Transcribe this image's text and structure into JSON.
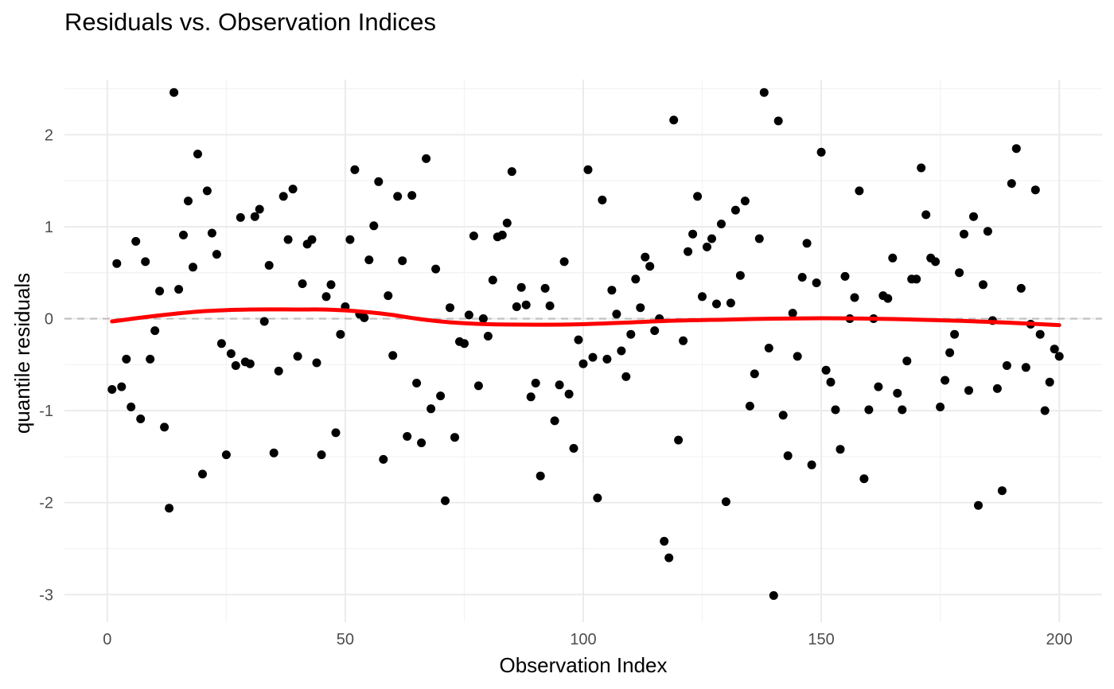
{
  "chart_data": {
    "type": "scatter",
    "title": "Residuals vs. Observation Indices",
    "xlabel": "Observation Index",
    "ylabel": "quantile residuals",
    "xlim": [
      -9,
      209
    ],
    "ylim": [
      -3.3,
      2.6
    ],
    "x_ticks": [
      0,
      50,
      100,
      150,
      200
    ],
    "y_ticks": [
      -3,
      -2,
      -1,
      0,
      1,
      2
    ],
    "x_tick_labels": [
      "0",
      "50",
      "100",
      "150",
      "200"
    ],
    "y_tick_labels": [
      "-3",
      "-2",
      "-1",
      "0",
      "1",
      "2"
    ],
    "grid": true,
    "reference_line": {
      "y": 0,
      "style": "dashed",
      "color": "#bebebe"
    },
    "point_color": "#000000",
    "smooth_color": "#ff0000",
    "series": [
      {
        "type": "scatter",
        "x": [
          1,
          2,
          3,
          4,
          5,
          6,
          7,
          8,
          9,
          10,
          11,
          12,
          13,
          14,
          15,
          16,
          17,
          18,
          19,
          20,
          21,
          22,
          23,
          24,
          25,
          26,
          27,
          28,
          29,
          30,
          31,
          32,
          33,
          34,
          35,
          36,
          37,
          38,
          39,
          40,
          41,
          42,
          43,
          44,
          45,
          46,
          47,
          48,
          49,
          50,
          51,
          52,
          53,
          54,
          55,
          56,
          57,
          58,
          59,
          60,
          61,
          62,
          63,
          64,
          65,
          66,
          67,
          68,
          69,
          70,
          71,
          72,
          73,
          74,
          75,
          76,
          77,
          78,
          79,
          80,
          81,
          82,
          83,
          84,
          85,
          86,
          87,
          88,
          89,
          90,
          91,
          92,
          93,
          94,
          95,
          96,
          97,
          98,
          99,
          100,
          101,
          102,
          103,
          104,
          105,
          106,
          107,
          108,
          109,
          110,
          111,
          112,
          113,
          114,
          115,
          116,
          117,
          118,
          119,
          120,
          121,
          122,
          123,
          124,
          125,
          126,
          127,
          128,
          129,
          130,
          131,
          132,
          133,
          134,
          135,
          136,
          137,
          138,
          139,
          140,
          141,
          142,
          143,
          144,
          145,
          146,
          147,
          148,
          149,
          150,
          151,
          152,
          153,
          154,
          155,
          156,
          157,
          158,
          159,
          160,
          161,
          162,
          163,
          164,
          165,
          166,
          167,
          168,
          169,
          170,
          171,
          172,
          173,
          174,
          175,
          176,
          177,
          178,
          179,
          180,
          181,
          182,
          183,
          184,
          185,
          186,
          187,
          188,
          189,
          190,
          191,
          192,
          193,
          194,
          195,
          196,
          197,
          198,
          199,
          200
        ],
        "y": [
          -0.77,
          0.6,
          -0.74,
          -0.44,
          -0.96,
          0.84,
          -1.09,
          0.62,
          -0.44,
          -0.13,
          0.3,
          -1.18,
          -2.06,
          2.46,
          0.32,
          0.91,
          1.28,
          0.56,
          1.79,
          -1.69,
          1.39,
          0.93,
          0.7,
          -0.27,
          -1.48,
          -0.38,
          -0.51,
          1.1,
          -0.47,
          -0.49,
          1.11,
          1.19,
          -0.03,
          0.58,
          -1.46,
          -0.57,
          1.33,
          0.86,
          1.41,
          -0.41,
          0.38,
          0.81,
          0.86,
          -0.48,
          -1.48,
          0.24,
          0.37,
          -1.24,
          -0.17,
          0.13,
          0.86,
          1.62,
          0.05,
          0.01,
          0.64,
          1.01,
          1.49,
          -1.53,
          0.25,
          -0.4,
          1.33,
          0.63,
          -1.28,
          1.34,
          -0.7,
          -1.35,
          1.74,
          -0.98,
          0.54,
          -0.84,
          -1.98,
          0.12,
          -1.29,
          -0.25,
          -0.27,
          0.04,
          0.9,
          -0.73,
          0.0,
          -0.19,
          0.42,
          0.89,
          0.91,
          1.04,
          1.6,
          0.13,
          0.34,
          0.15,
          -0.85,
          -0.7,
          -1.71,
          0.33,
          0.14,
          -1.11,
          -0.72,
          0.62,
          -0.82,
          -1.41,
          -0.23,
          -0.49,
          1.62,
          -0.42,
          -1.95,
          1.29,
          -0.44,
          0.31,
          0.05,
          -0.35,
          -0.63,
          -0.17,
          0.43,
          0.12,
          0.67,
          0.57,
          -0.13,
          0.0,
          -2.42,
          -2.6,
          2.16,
          -1.32,
          -0.24,
          0.73,
          0.92,
          1.33,
          0.24,
          0.78,
          0.87,
          0.16,
          1.03,
          -1.99,
          0.17,
          1.18,
          0.47,
          1.28,
          -0.95,
          -0.6,
          0.87,
          2.46,
          -0.32,
          -3.01,
          2.15,
          -1.05,
          -1.49,
          0.06,
          -0.41,
          0.45,
          0.82,
          -1.59,
          0.39,
          1.81,
          -0.56,
          -0.69,
          -0.99,
          -1.42,
          0.46,
          0.0,
          0.23,
          1.39,
          -1.74,
          -0.99,
          0.0,
          -0.74,
          0.25,
          0.22,
          0.66,
          -0.81,
          -0.99,
          -0.46,
          0.43,
          0.43,
          1.64,
          1.13,
          0.66,
          0.62,
          -0.96,
          -0.67,
          -0.37,
          -0.17,
          0.5,
          0.92,
          -0.78,
          1.11,
          -2.03,
          0.37,
          0.95,
          -0.02,
          -0.76,
          -1.87,
          -0.51,
          1.47,
          1.85,
          0.33,
          -0.53,
          -0.06,
          1.4,
          -0.17,
          -1.0,
          -0.69,
          -0.33,
          -0.41
        ]
      },
      {
        "type": "line",
        "x": [
          1,
          10,
          20,
          30,
          40,
          45,
          50,
          55,
          60,
          65,
          70,
          75,
          80,
          90,
          100,
          110,
          120,
          130,
          140,
          150,
          160,
          170,
          180,
          190,
          200
        ],
        "y": [
          -0.03,
          0.03,
          0.08,
          0.1,
          0.1,
          0.1,
          0.09,
          0.07,
          0.04,
          0.0,
          -0.03,
          -0.05,
          -0.06,
          -0.065,
          -0.06,
          -0.04,
          -0.02,
          -0.01,
          0.0,
          0.005,
          0.0,
          -0.01,
          -0.025,
          -0.045,
          -0.07
        ]
      }
    ]
  }
}
